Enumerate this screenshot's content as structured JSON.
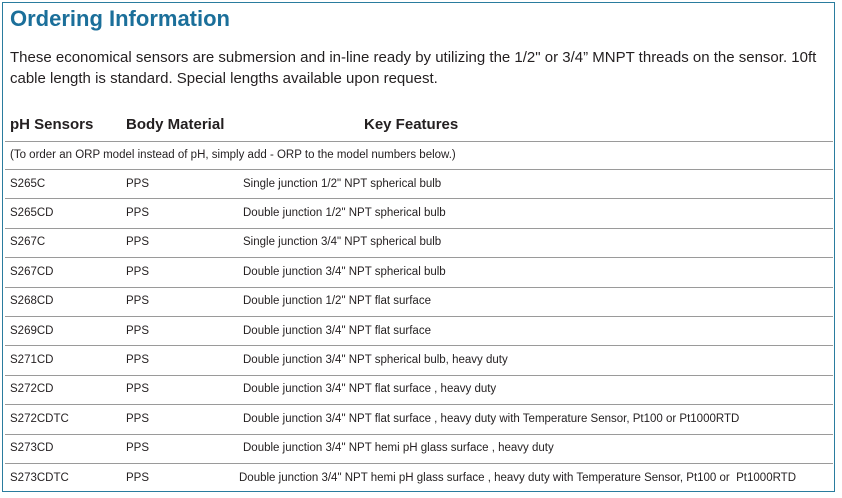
{
  "header": {
    "title": "Ordering Information",
    "intro": "These economical sensors are submersion and in-line ready by utilizing the 1/2\" or 3/4” MNPT threads on the sensor.  10ft cable length is standard.  Special lengths available upon request."
  },
  "table": {
    "headers": [
      "pH Sensors",
      "Body Material",
      "Key Features"
    ],
    "note": "(To order an ORP model instead of pH, simply add - ORP to the model numbers below.)",
    "rows": [
      [
        "S265C",
        "PPS",
        "Single junction 1/2\" NPT spherical bulb"
      ],
      [
        "S265CD",
        "PPS",
        "Double junction 1/2\" NPT spherical bulb"
      ],
      [
        "S267C",
        "PPS",
        "Single junction 3/4\" NPT spherical bulb"
      ],
      [
        "S267CD",
        "PPS",
        "Double junction 3/4\" NPT spherical bulb"
      ],
      [
        "S268CD",
        "PPS",
        "Double junction 1/2\" NPT flat surface"
      ],
      [
        "S269CD",
        "PPS",
        "Double junction 3/4\" NPT flat surface"
      ],
      [
        "S271CD",
        "PPS",
        "Double junction 3/4\" NPT spherical bulb, heavy duty"
      ],
      [
        "S272CD",
        "PPS",
        "Double junction 3/4\" NPT flat surface , heavy duty"
      ],
      [
        "S272CDTC",
        "PPS",
        "Double junction 3/4\" NPT flat surface , heavy duty with Temperature Sensor, Pt100 or Pt1000RTD"
      ],
      [
        "S273CD",
        "PPS",
        "Double junction 3/4\" NPT hemi pH glass surface , heavy duty"
      ],
      [
        "S273CDTC",
        "PPS",
        "Double junction 3/4\" NPT hemi pH glass surface , heavy duty with Temperature Sensor, Pt100 or  Pt1000RTD"
      ]
    ]
  }
}
